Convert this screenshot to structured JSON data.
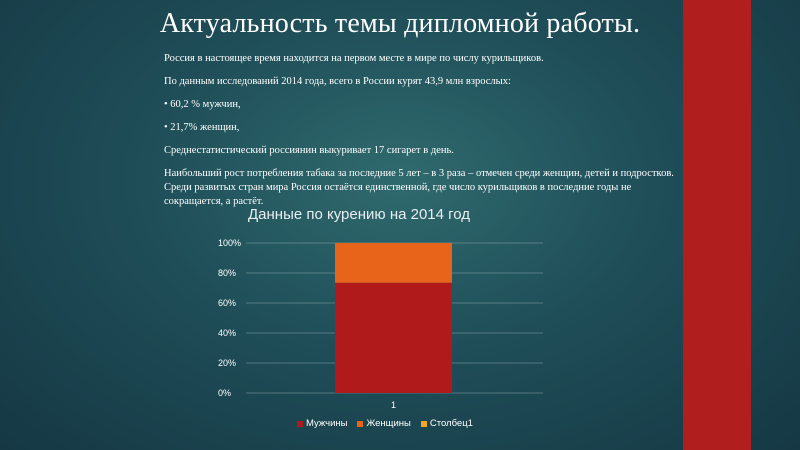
{
  "slide": {
    "title": "Актуальность темы дипломной работы.",
    "paragraphs": [
      "Россия в настоящее время находится на первом месте в мире по числу курильщиков.",
      "По данным исследований 2014 года, всего в России курят 43,9 млн взрослых:",
      "• 60,2 % мужчин,",
      "•  21,7% женщин,",
      "Среднестатистический россиянин выкуривает 17 сигарет в день.",
      "Наибольший рост потребления табака за последние 5 лет – в 3 раза – отмечен среди женщин, детей и подростков. Среди развитых стран мира Россия остаётся единственной, где число курильщиков в последние годы не сокращается, а растёт."
    ],
    "accent_color": "#b01e1e"
  },
  "chart_data": {
    "type": "bar",
    "stacked": "percent",
    "title": "Данные по курению на 2014 год",
    "categories": [
      "1"
    ],
    "series": [
      {
        "name": "Мужчины",
        "values": [
          60.2
        ],
        "color": "#b01a1a"
      },
      {
        "name": "Женщины",
        "values": [
          21.7
        ],
        "color": "#e8641a"
      },
      {
        "name": "Столбец1",
        "values": [
          0
        ],
        "color": "#f5a623"
      }
    ],
    "y_ticks": [
      "0%",
      "20%",
      "40%",
      "60%",
      "80%",
      "100%"
    ],
    "ylim": [
      0,
      100
    ],
    "grid": true,
    "legend": "bottom"
  }
}
